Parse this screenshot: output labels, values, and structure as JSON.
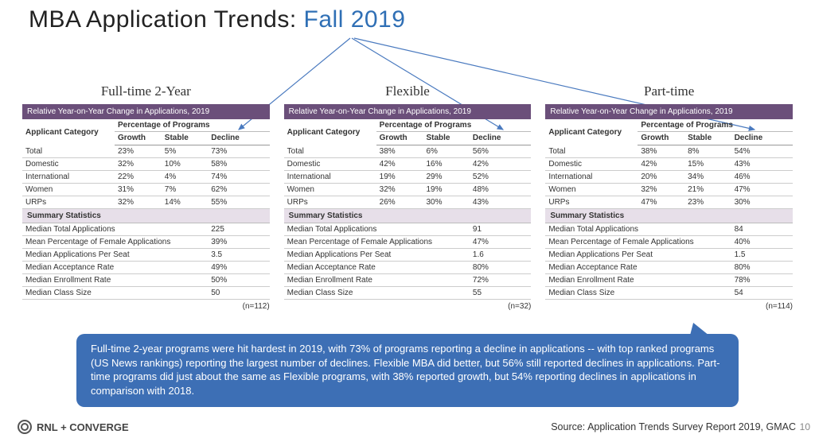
{
  "title_prefix": "MBA Application Trends: ",
  "title_accent": "Fall 2019",
  "table_header_bar": "Relative Year-on-Year Change in Applications, 2019",
  "col_applicant": "Applicant Category",
  "col_pct": "Percentage of Programs",
  "col_growth": "Growth",
  "col_stable": "Stable",
  "col_decline": "Decline",
  "section_summary": "Summary Statistics",
  "row_labels": [
    "Total",
    "Domestic",
    "International",
    "Women",
    "URPs"
  ],
  "stat_labels": [
    "Median Total Applications",
    "Mean Percentage of Female Applications",
    "Median Applications Per Seat",
    "Median Acceptance Rate",
    "Median Enrollment Rate",
    "Median Class Size"
  ],
  "panels": [
    {
      "title": "Full-time 2-Year",
      "rows": [
        [
          "23%",
          "5%",
          "73%"
        ],
        [
          "32%",
          "10%",
          "58%"
        ],
        [
          "22%",
          "4%",
          "74%"
        ],
        [
          "31%",
          "7%",
          "62%"
        ],
        [
          "32%",
          "14%",
          "55%"
        ]
      ],
      "stats": [
        "225",
        "39%",
        "3.5",
        "49%",
        "50%",
        "50"
      ],
      "n": "(n=112)"
    },
    {
      "title": "Flexible",
      "rows": [
        [
          "38%",
          "6%",
          "56%"
        ],
        [
          "42%",
          "16%",
          "42%"
        ],
        [
          "19%",
          "29%",
          "52%"
        ],
        [
          "32%",
          "19%",
          "48%"
        ],
        [
          "26%",
          "30%",
          "43%"
        ]
      ],
      "stats": [
        "91",
        "47%",
        "1.6",
        "80%",
        "72%",
        "55"
      ],
      "n": "(n=32)"
    },
    {
      "title": "Part-time",
      "rows": [
        [
          "38%",
          "8%",
          "54%"
        ],
        [
          "42%",
          "15%",
          "43%"
        ],
        [
          "20%",
          "34%",
          "46%"
        ],
        [
          "32%",
          "21%",
          "47%"
        ],
        [
          "47%",
          "23%",
          "30%"
        ]
      ],
      "stats": [
        "84",
        "40%",
        "1.5",
        "80%",
        "78%",
        "54"
      ],
      "n": "(n=114)"
    }
  ],
  "callout_text": "Full-time 2-year programs were hit hardest in 2019, with 73% of programs reporting a decline in applications -- with top ranked programs (US News rankings) reporting the largest number of declines. Flexible MBA did better, but 56% still reported declines in applications. Part-time programs did just about the same as Flexible programs, with 38% reported growth, but 54% reporting declines in applications in comparison with 2018.",
  "footer_logo_text": "RNL + CONVERGE",
  "footer_source": "Source: Application Trends Survey Report 2019, GMAC",
  "page_number": "10",
  "colors": {
    "header_bar": "#6b4f7a",
    "section_bg": "#e7dfe9",
    "accent_blue": "#2f6fb5",
    "callout_bg": "#3d6fb5",
    "arrow": "#4a7abf"
  }
}
